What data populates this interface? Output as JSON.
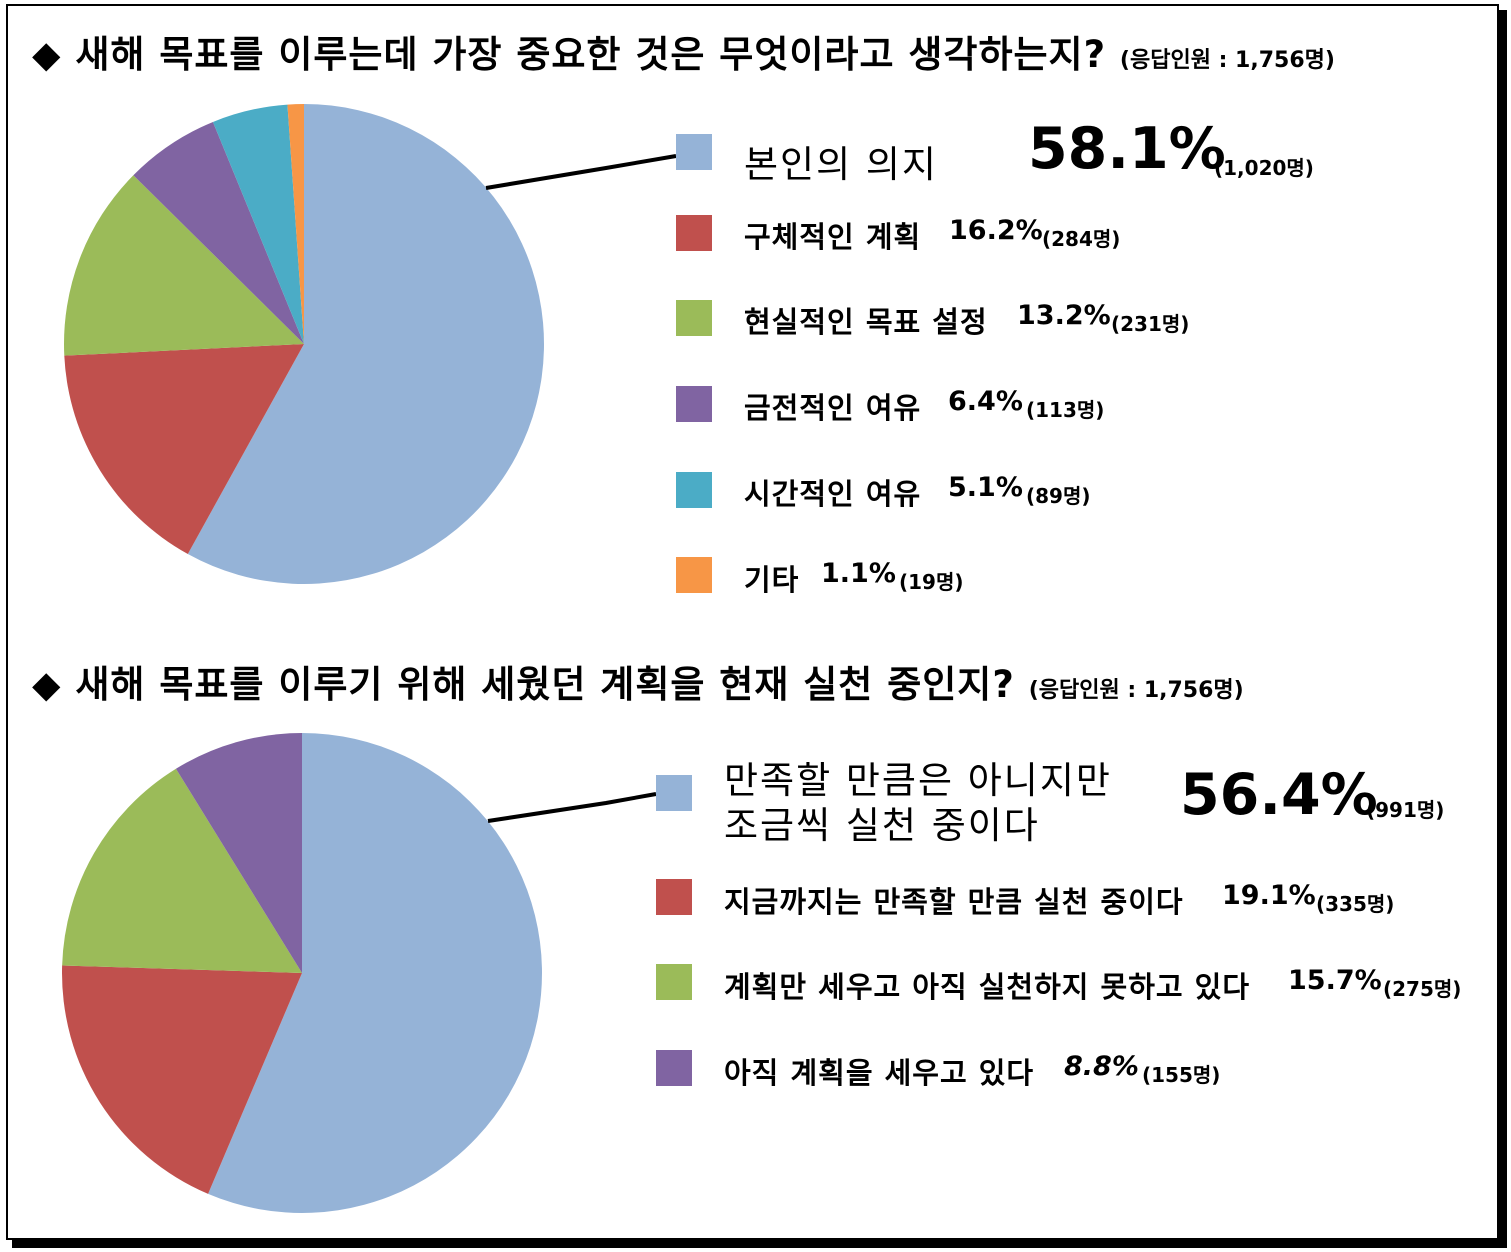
{
  "chart_data": [
    {
      "type": "pie",
      "title": "새해 목표를 이루는데 가장 중요한 것은 무엇이라고 생각하는지?",
      "respondents": "(응답인원 : 1,756명)",
      "slices": [
        {
          "label": "본인의 의지",
          "percent_label": "58.1%",
          "count_label": "(1,020명)",
          "value": 58.1,
          "color": "#95B3D7"
        },
        {
          "label": "구체적인 계획",
          "percent_label": "16.2%",
          "count_label": "(284명)",
          "value": 16.2,
          "color": "#C0504D"
        },
        {
          "label": "현실적인 목표 설정",
          "percent_label": "13.2%",
          "count_label": "(231명)",
          "value": 13.2,
          "color": "#9BBB59"
        },
        {
          "label": "금전적인 여유",
          "percent_label": "6.4%",
          "count_label": "(113명)",
          "value": 6.4,
          "color": "#8064A2"
        },
        {
          "label": "시간적인 여유",
          "percent_label": "5.1%",
          "count_label": "(89명)",
          "value": 5.1,
          "color": "#4BACC6"
        },
        {
          "label": "기타",
          "percent_label": "1.1%",
          "count_label": "(19명)",
          "value": 1.1,
          "color": "#F79646"
        }
      ]
    },
    {
      "type": "pie",
      "title": "새해 목표를 이루기 위해 세웠던 계획을 현재 실천 중인지?",
      "respondents": "(응답인원 : 1,756명)",
      "slices": [
        {
          "label_line1": "만족할 만큼은 아니지만",
          "label_line2": "조금씩 실천 중이다",
          "percent_label": "56.4%",
          "count_label": "(991명)",
          "value": 56.4,
          "color": "#95B3D7"
        },
        {
          "label": "지금까지는 만족할 만큼 실천 중이다",
          "percent_label": "19.1%",
          "count_label": "(335명)",
          "value": 19.1,
          "color": "#C0504D"
        },
        {
          "label": "계획만 세우고 아직 실천하지 못하고 있다",
          "percent_label": "15.7%",
          "count_label": "(275명)",
          "value": 15.7,
          "color": "#9BBB59"
        },
        {
          "label": "아직 계획을 세우고 있다",
          "percent_label": "8.8%",
          "count_label": "(155명)",
          "value": 8.8,
          "color": "#8064A2"
        }
      ]
    }
  ],
  "bullet": "◆"
}
